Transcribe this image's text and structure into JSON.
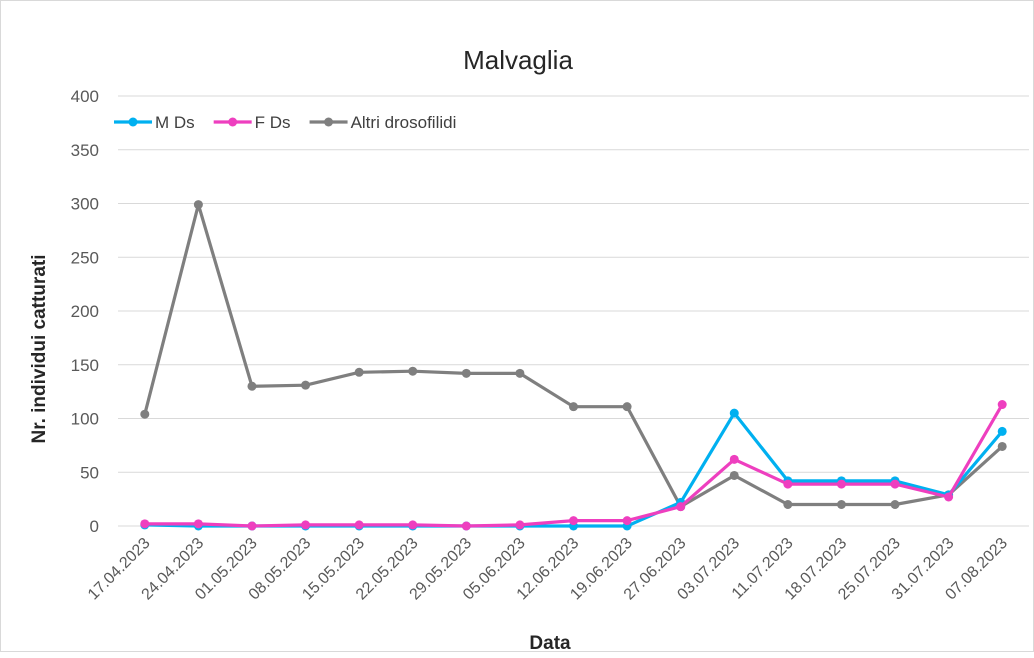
{
  "chart_data": {
    "type": "line",
    "title": "Malvaglia",
    "xlabel": "Data",
    "ylabel": "Nr. individui catturati",
    "ylim": [
      0,
      400
    ],
    "yticks": [
      0,
      50,
      100,
      150,
      200,
      250,
      300,
      350,
      400
    ],
    "grid": true,
    "legend_position": "top-left",
    "categories": [
      "17.04.2023",
      "24.04.2023",
      "01.05.2023",
      "08.05.2023",
      "15.05.2023",
      "22.05.2023",
      "29.05.2023",
      "05.06.2023",
      "12.06.2023",
      "19.06.2023",
      "27.06.2023",
      "03.07.2023",
      "11.07.2023",
      "18.07.2023",
      "25.07.2023",
      "31.07.2023",
      "07.08.2023"
    ],
    "series": [
      {
        "name": "M Ds",
        "color": "#00b0f0",
        "values": [
          1,
          0,
          0,
          0,
          0,
          0,
          0,
          0,
          0,
          0,
          22,
          105,
          42,
          42,
          42,
          29,
          88
        ]
      },
      {
        "name": "F Ds",
        "color": "#ee3fbf",
        "values": [
          2,
          2,
          0,
          1,
          1,
          1,
          0,
          1,
          5,
          5,
          18,
          62,
          39,
          39,
          39,
          27,
          113
        ]
      },
      {
        "name": "Altri drosofilidi",
        "color": "#7f7f7f",
        "values": [
          104,
          299,
          130,
          131,
          143,
          144,
          142,
          142,
          111,
          111,
          18,
          47,
          20,
          20,
          20,
          29,
          74
        ]
      }
    ]
  }
}
